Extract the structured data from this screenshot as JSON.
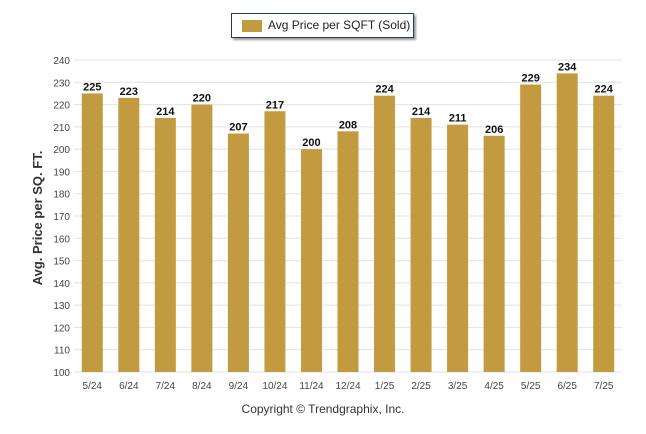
{
  "chart_data": {
    "type": "bar",
    "categories": [
      "5/24",
      "6/24",
      "7/24",
      "8/24",
      "9/24",
      "10/24",
      "11/24",
      "12/24",
      "1/25",
      "2/25",
      "3/25",
      "4/25",
      "5/25",
      "6/25",
      "7/25"
    ],
    "series": [
      {
        "name": "Avg Price per SQFT (Sold)",
        "values": [
          225,
          223,
          214,
          220,
          207,
          217,
          200,
          208,
          224,
          214,
          211,
          206,
          229,
          234,
          224
        ]
      }
    ],
    "ylabel": "Avg. Price per SQ. FT.",
    "xlabel": "",
    "ylim": [
      100,
      240
    ],
    "yticks": [
      100,
      110,
      120,
      130,
      140,
      150,
      160,
      170,
      180,
      190,
      200,
      210,
      220,
      230,
      240
    ],
    "grid": true,
    "legend_position": "top-center",
    "bar_color": "#c29a3f"
  },
  "legend": {
    "label": "Avg Price per SQFT (Sold)"
  },
  "footer": {
    "copyright": "Copyright © Trendgraphix, Inc."
  }
}
